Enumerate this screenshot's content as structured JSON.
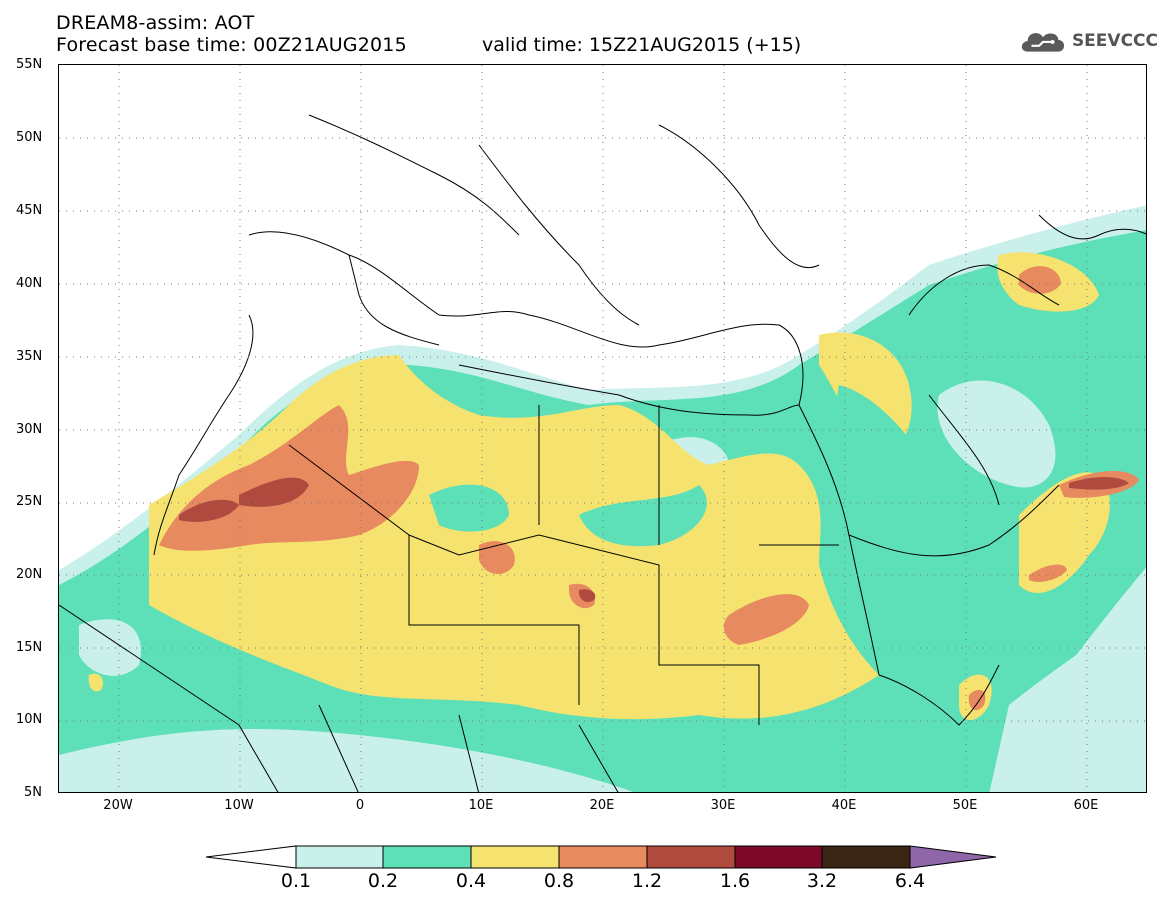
{
  "header": {
    "title_line1": "DREAM8-assim: AOT",
    "title_line2": "Forecast base time: 00Z21AUG2015",
    "valid_time": "valid time: 15Z21AUG2015 (+15)",
    "logo_text": "SEEVCCC"
  },
  "map": {
    "lat_labels": [
      "55N",
      "50N",
      "45N",
      "40N",
      "35N",
      "30N",
      "25N",
      "20N",
      "15N",
      "10N",
      "5N"
    ],
    "lon_labels": [
      "20W",
      "10W",
      "0",
      "10E",
      "20E",
      "30E",
      "40E",
      "50E",
      "60E"
    ],
    "lat_range": [
      5,
      55
    ],
    "lon_range": [
      -25,
      65
    ],
    "grid": "dotted"
  },
  "legend": {
    "levels": [
      "0.1",
      "0.2",
      "0.4",
      "0.8",
      "1.2",
      "1.6",
      "3.2",
      "6.4"
    ],
    "colors": [
      "#ffffff",
      "#c9f0eb",
      "#5ddfb8",
      "#f6e36f",
      "#e88a60",
      "#b04a3e",
      "#7d0a2a",
      "#3a2414",
      "#8f67a8"
    ]
  }
}
